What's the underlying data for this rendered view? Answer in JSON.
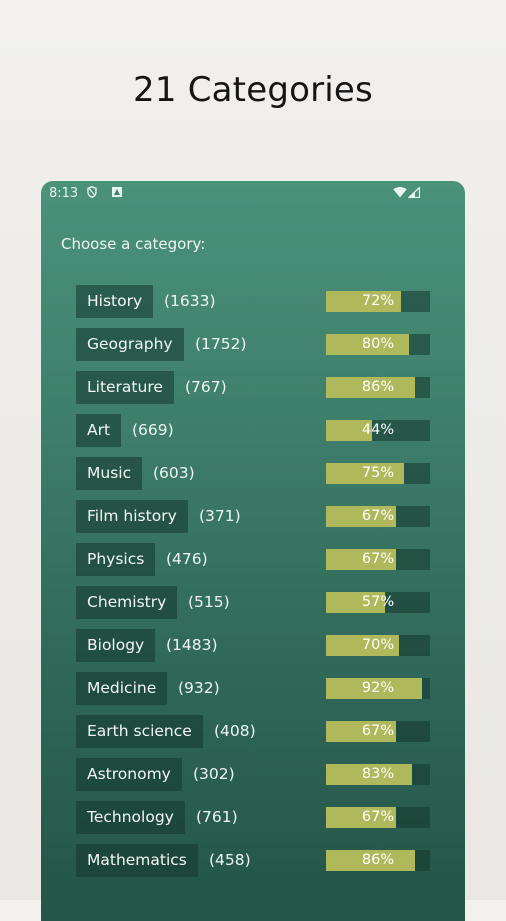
{
  "promo": {
    "title": "21 Categories"
  },
  "status_bar": {
    "time": "8:13",
    "icons": [
      "shield-icon",
      "a-notification-icon",
      "wifi-icon",
      "signal-icon"
    ]
  },
  "screen": {
    "prompt": "Choose a category:"
  },
  "colors": {
    "background": "#eeece9",
    "phone_top": "#4b927b",
    "phone_bottom": "#245547",
    "chip_bg": "#2c5e50",
    "progress_fill": "#b0b85c"
  },
  "categories": [
    {
      "name": "History",
      "count": "(1633)",
      "percent_label": "72%",
      "percent": 72
    },
    {
      "name": "Geography",
      "count": "(1752)",
      "percent_label": "80%",
      "percent": 80
    },
    {
      "name": "Literature",
      "count": "(767)",
      "percent_label": "86%",
      "percent": 86
    },
    {
      "name": "Art",
      "count": "(669)",
      "percent_label": "44%",
      "percent": 44
    },
    {
      "name": "Music",
      "count": "(603)",
      "percent_label": "75%",
      "percent": 75
    },
    {
      "name": "Film history",
      "count": "(371)",
      "percent_label": "67%",
      "percent": 67
    },
    {
      "name": "Physics",
      "count": "(476)",
      "percent_label": "67%",
      "percent": 67
    },
    {
      "name": "Chemistry",
      "count": "(515)",
      "percent_label": "57%",
      "percent": 57
    },
    {
      "name": "Biology",
      "count": "(1483)",
      "percent_label": "70%",
      "percent": 70
    },
    {
      "name": "Medicine",
      "count": "(932)",
      "percent_label": "92%",
      "percent": 92
    },
    {
      "name": "Earth science",
      "count": "(408)",
      "percent_label": "67%",
      "percent": 67
    },
    {
      "name": "Astronomy",
      "count": "(302)",
      "percent_label": "83%",
      "percent": 83
    },
    {
      "name": "Technology",
      "count": "(761)",
      "percent_label": "67%",
      "percent": 67
    },
    {
      "name": "Mathematics",
      "count": "(458)",
      "percent_label": "86%",
      "percent": 86
    }
  ]
}
